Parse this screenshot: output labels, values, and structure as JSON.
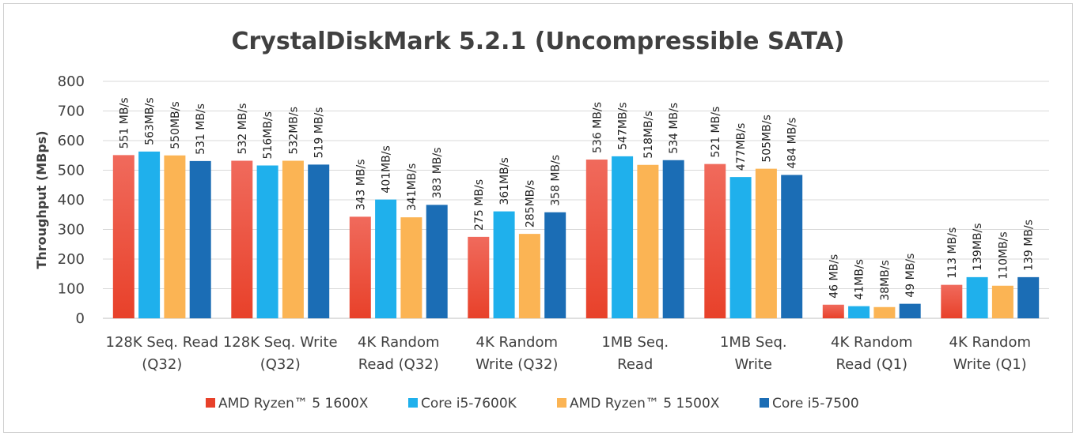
{
  "chart_data": {
    "type": "bar",
    "title": "CrystalDiskMark 5.2.1 (Uncompressible SATA)",
    "ylabel": "Throughput (MBps)",
    "xlabel": "",
    "ylim": [
      0,
      800
    ],
    "yticks": [
      0,
      100,
      200,
      300,
      400,
      500,
      600,
      700,
      800
    ],
    "grid": true,
    "legend_position": "bottom",
    "categories": [
      [
        "128K Seq. Read",
        "(Q32)"
      ],
      [
        "128K Seq. Write",
        "(Q32)"
      ],
      [
        "4K Random",
        "Read (Q32)"
      ],
      [
        "4K Random",
        "Write (Q32)"
      ],
      [
        "1MB Seq.",
        "Read"
      ],
      [
        "1MB Seq.",
        "Write"
      ],
      [
        "4K Random",
        "Read (Q1)"
      ],
      [
        "4K Random",
        "Write (Q1)"
      ]
    ],
    "series": [
      {
        "name": "AMD Ryzen™ 5 1600X",
        "color": "#e8412a",
        "color_light": "#f06a5c",
        "values": [
          551,
          532,
          343,
          275,
          536,
          521,
          46,
          113
        ],
        "labels": [
          "551 MB/s",
          "532 MB/s",
          "343 MB/s",
          "275 MB/s",
          "536 MB/s",
          "521 MB/s",
          "46 MB/s",
          "113 MB/s"
        ]
      },
      {
        "name": "Core i5-7600K",
        "color": "#1fb0ec",
        "color_light": "#1fb0ec",
        "values": [
          563,
          516,
          401,
          361,
          547,
          477,
          41,
          139
        ],
        "labels": [
          "563MB/s",
          "516MB/s",
          "401MB/s",
          "361MB/s",
          "547MB/s",
          "477MB/s",
          "41MB/s",
          "139MB/s"
        ]
      },
      {
        "name": "AMD Ryzen™ 5 1500X",
        "color": "#fbb454",
        "color_light": "#fbb454",
        "values": [
          550,
          532,
          341,
          285,
          518,
          505,
          38,
          110
        ],
        "labels": [
          "550MB/s",
          "532MB/s",
          "341MB/s",
          "285MB/s",
          "518MB/s",
          "505MB/s",
          "38MB/s",
          "110MB/s"
        ]
      },
      {
        "name": "Core i5-7500",
        "color": "#1b6db5",
        "color_light": "#1b6db5",
        "values": [
          531,
          519,
          383,
          358,
          534,
          484,
          49,
          139
        ],
        "labels": [
          "531 MB/s",
          "519 MB/s",
          "383 MB/s",
          "358 MB/s",
          "534 MB/s",
          "484 MB/s",
          "49 MB/s",
          "139 MB/s"
        ]
      }
    ]
  }
}
